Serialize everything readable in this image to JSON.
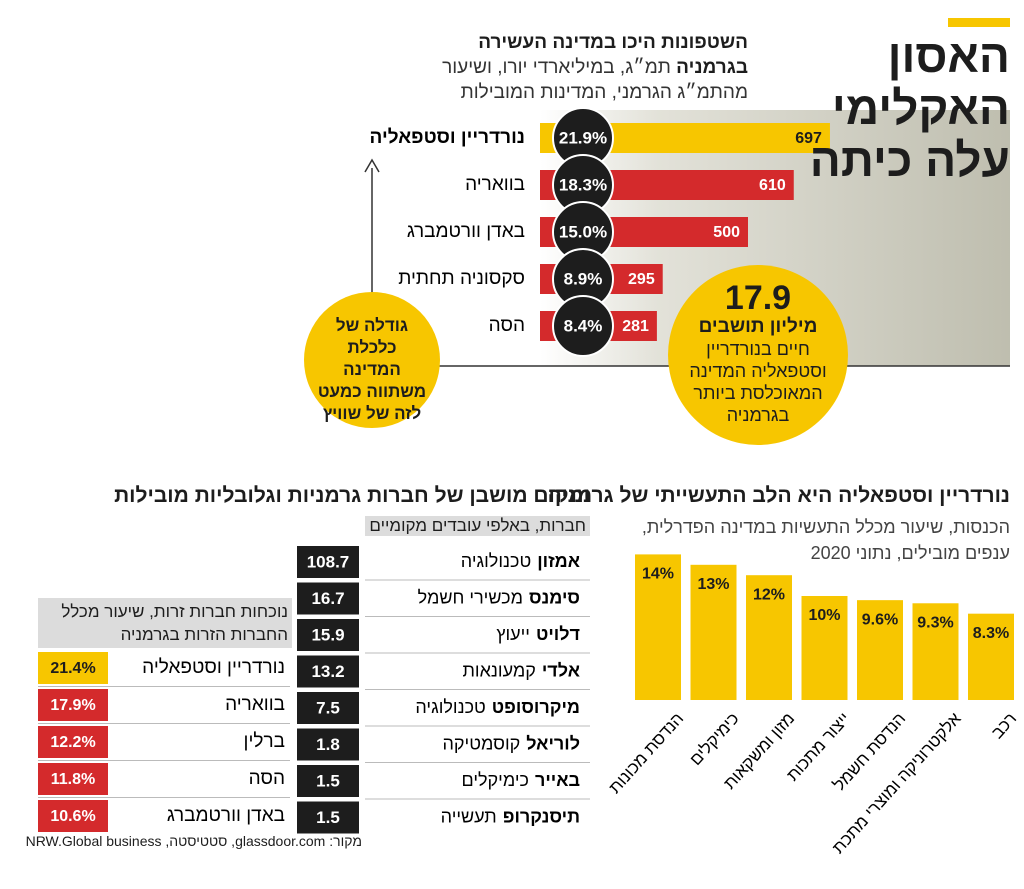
{
  "header": {
    "title": "האסון האקלימי עלה כיתה"
  },
  "chart_data": [
    {
      "type": "hbar",
      "title": "השטפונות היכו במדינה העשירה בגרמניה",
      "subtitle": "תמ״ג, במיליארדי יורו, ושיעור מהתמ״ג הגרמני, המדינות המובילות",
      "categories": [
        "נורדריין וסטפאליה",
        "בוואריה",
        "באדן וורטמברג",
        "סקסוניה תחתית",
        "הסה"
      ],
      "series": [
        {
          "values": [
            697,
            610,
            500,
            295,
            281
          ],
          "colors": [
            "#f7c600",
            "#d42a2c",
            "#d42a2c",
            "#d42a2c",
            "#d42a2c"
          ]
        },
        {
          "values": [
            21.9,
            18.3,
            15,
            8.9,
            8.4
          ],
          "value_labels": [
            "21.9%",
            "18.3%",
            "15.0%",
            "8.9%",
            "8.4%"
          ],
          "color": "#1d1d1d"
        }
      ],
      "annotation": "גודלה של כלכלת המדינה משתווה כמעט לזה של שוויץ",
      "population": {
        "value": 17.9,
        "unit": "מיליון תושבים",
        "text": "חיים בנורדריין וסטפאליה המדינה המאוכלסת ביותר בגרמניה"
      }
    },
    {
      "type": "bar",
      "title": "נורדריין וסטפאליה היא הלב התעשייתי של גרמניה",
      "subtitle": "הכנסות, שיעור מכלל התעשיות במדינה הפדרלית, ענפים מובילים, נתוני 2020",
      "categories": [
        "הנדסת מכונות",
        "כימיקלים",
        "מזון ומשקאות",
        "ייצור מתכות",
        "הנדסת חשמל",
        "אלקטרוניקה ומוצרי מתכת",
        "רכב"
      ],
      "values": [
        14,
        13,
        12,
        10,
        9.6,
        9.3,
        8.3
      ],
      "value_labels": [
        "14%",
        "13%",
        "12%",
        "10%",
        "9.6%",
        "9.3%",
        "8.3%"
      ],
      "color": "#f7c600"
    },
    {
      "type": "table",
      "title": "ומקום מושבן של חברות גרמניות וגלובליות מובילות",
      "subtitle": "חברות, באלפי עובדים מקומיים",
      "rows": [
        {
          "company": "אמזון",
          "sector": "טכנולוגיה",
          "value": 108.7
        },
        {
          "company": "סימנס",
          "sector": "מכשירי חשמל",
          "value": 16.7
        },
        {
          "company": "דלויט",
          "sector": "ייעוץ",
          "value": 15.9
        },
        {
          "company": "אלדי",
          "sector": "קמעונאות",
          "value": 13.2
        },
        {
          "company": "מיקרוסופט",
          "sector": "טכנולוגיה",
          "value": 7.5
        },
        {
          "company": "לוריאל",
          "sector": "קוסמטיקה",
          "value": 1.8
        },
        {
          "company": "באייר",
          "sector": "כימיקלים",
          "value": 1.5
        },
        {
          "company": "תיסנקרופ",
          "sector": "תעשייה",
          "value": 1.5
        }
      ]
    },
    {
      "type": "boxlist",
      "subtitle": "נוכחות חברות זרות, שיעור מכלל החברות הזרות בגרמניה",
      "categories": [
        "נורדריין וסטפאליה",
        "בוואריה",
        "ברלין",
        "הסה",
        "באדן וורטמברג"
      ],
      "values": [
        21.4,
        17.9,
        12.2,
        11.8,
        10.6
      ],
      "value_labels": [
        "21.4%",
        "17.9%",
        "12.2%",
        "11.8%",
        "10.6%"
      ],
      "colors": [
        "#f7c600",
        "#d42a2c",
        "#d42a2c",
        "#d42a2c",
        "#d42a2c"
      ]
    }
  ],
  "source": "מקור: glassdoor.com, סטטיסטה, NRW.Global business"
}
